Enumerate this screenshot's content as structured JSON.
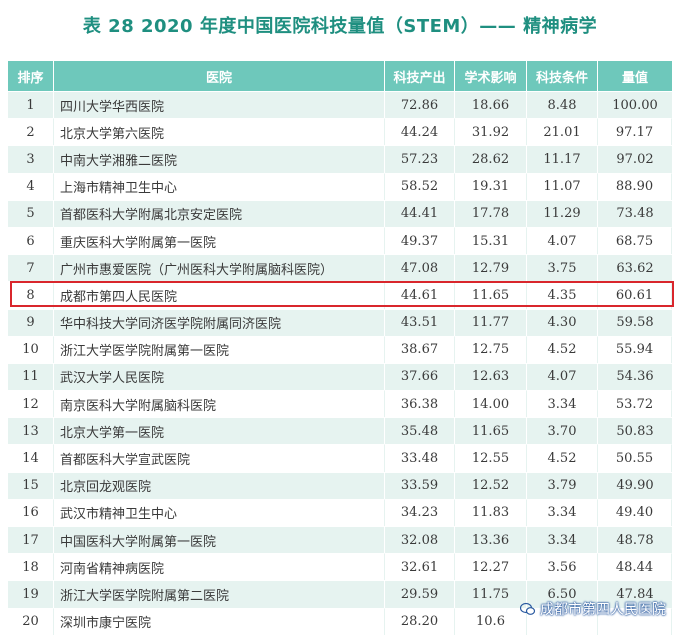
{
  "title": "表 28   2020 年度中国医院科技量值（STEM）—— 精神病学",
  "columns": [
    "排序",
    "医院",
    "科技产出",
    "学术影响",
    "科技条件",
    "量值"
  ],
  "rows": [
    {
      "rank": "1",
      "hospital": "四川大学华西医院",
      "output": "72.86",
      "impact": "18.66",
      "condition": "8.48",
      "score": "100.00"
    },
    {
      "rank": "2",
      "hospital": "北京大学第六医院",
      "output": "44.24",
      "impact": "31.92",
      "condition": "21.01",
      "score": "97.17"
    },
    {
      "rank": "3",
      "hospital": "中南大学湘雅二医院",
      "output": "57.23",
      "impact": "28.62",
      "condition": "11.17",
      "score": "97.02"
    },
    {
      "rank": "4",
      "hospital": "上海市精神卫生中心",
      "output": "58.52",
      "impact": "19.31",
      "condition": "11.07",
      "score": "88.90"
    },
    {
      "rank": "5",
      "hospital": "首都医科大学附属北京安定医院",
      "output": "44.41",
      "impact": "17.78",
      "condition": "11.29",
      "score": "73.48"
    },
    {
      "rank": "6",
      "hospital": "重庆医科大学附属第一医院",
      "output": "49.37",
      "impact": "15.31",
      "condition": "4.07",
      "score": "68.75"
    },
    {
      "rank": "7",
      "hospital": "广州市惠爱医院（广州医科大学附属脑科医院）",
      "output": "47.08",
      "impact": "12.79",
      "condition": "3.75",
      "score": "63.62"
    },
    {
      "rank": "8",
      "hospital": "成都市第四人民医院",
      "output": "44.61",
      "impact": "11.65",
      "condition": "4.35",
      "score": "60.61"
    },
    {
      "rank": "9",
      "hospital": "华中科技大学同济医学院附属同济医院",
      "output": "43.51",
      "impact": "11.77",
      "condition": "4.30",
      "score": "59.58"
    },
    {
      "rank": "10",
      "hospital": "浙江大学医学院附属第一医院",
      "output": "38.67",
      "impact": "12.75",
      "condition": "4.52",
      "score": "55.94"
    },
    {
      "rank": "11",
      "hospital": "武汉大学人民医院",
      "output": "37.66",
      "impact": "12.63",
      "condition": "4.07",
      "score": "54.36"
    },
    {
      "rank": "12",
      "hospital": "南京医科大学附属脑科医院",
      "output": "36.38",
      "impact": "14.00",
      "condition": "3.34",
      "score": "53.72"
    },
    {
      "rank": "13",
      "hospital": "北京大学第一医院",
      "output": "35.48",
      "impact": "11.65",
      "condition": "3.70",
      "score": "50.83"
    },
    {
      "rank": "14",
      "hospital": "首都医科大学宣武医院",
      "output": "33.48",
      "impact": "12.55",
      "condition": "4.52",
      "score": "50.55"
    },
    {
      "rank": "15",
      "hospital": "北京回龙观医院",
      "output": "33.59",
      "impact": "12.52",
      "condition": "3.79",
      "score": "49.90"
    },
    {
      "rank": "16",
      "hospital": "武汉市精神卫生中心",
      "output": "34.23",
      "impact": "11.83",
      "condition": "3.34",
      "score": "49.40"
    },
    {
      "rank": "17",
      "hospital": "中国医科大学附属第一医院",
      "output": "32.08",
      "impact": "13.36",
      "condition": "3.34",
      "score": "48.78"
    },
    {
      "rank": "18",
      "hospital": "河南省精神病医院",
      "output": "32.61",
      "impact": "12.27",
      "condition": "3.56",
      "score": "48.44"
    },
    {
      "rank": "19",
      "hospital": "浙江大学医学院附属第二医院",
      "output": "29.59",
      "impact": "11.75",
      "condition": "6.50",
      "score": "47.84"
    },
    {
      "rank": "20",
      "hospital": "深圳市康宁医院",
      "output": "28.20",
      "impact": "10.6",
      "condition": "",
      "score": ""
    }
  ],
  "watermark": "成都市第四人民医院",
  "colors": {
    "title": "#1f8f80",
    "header_bg": "#6ec8bb",
    "stripe": "#e6f3f0",
    "highlight": "#d9262c"
  }
}
